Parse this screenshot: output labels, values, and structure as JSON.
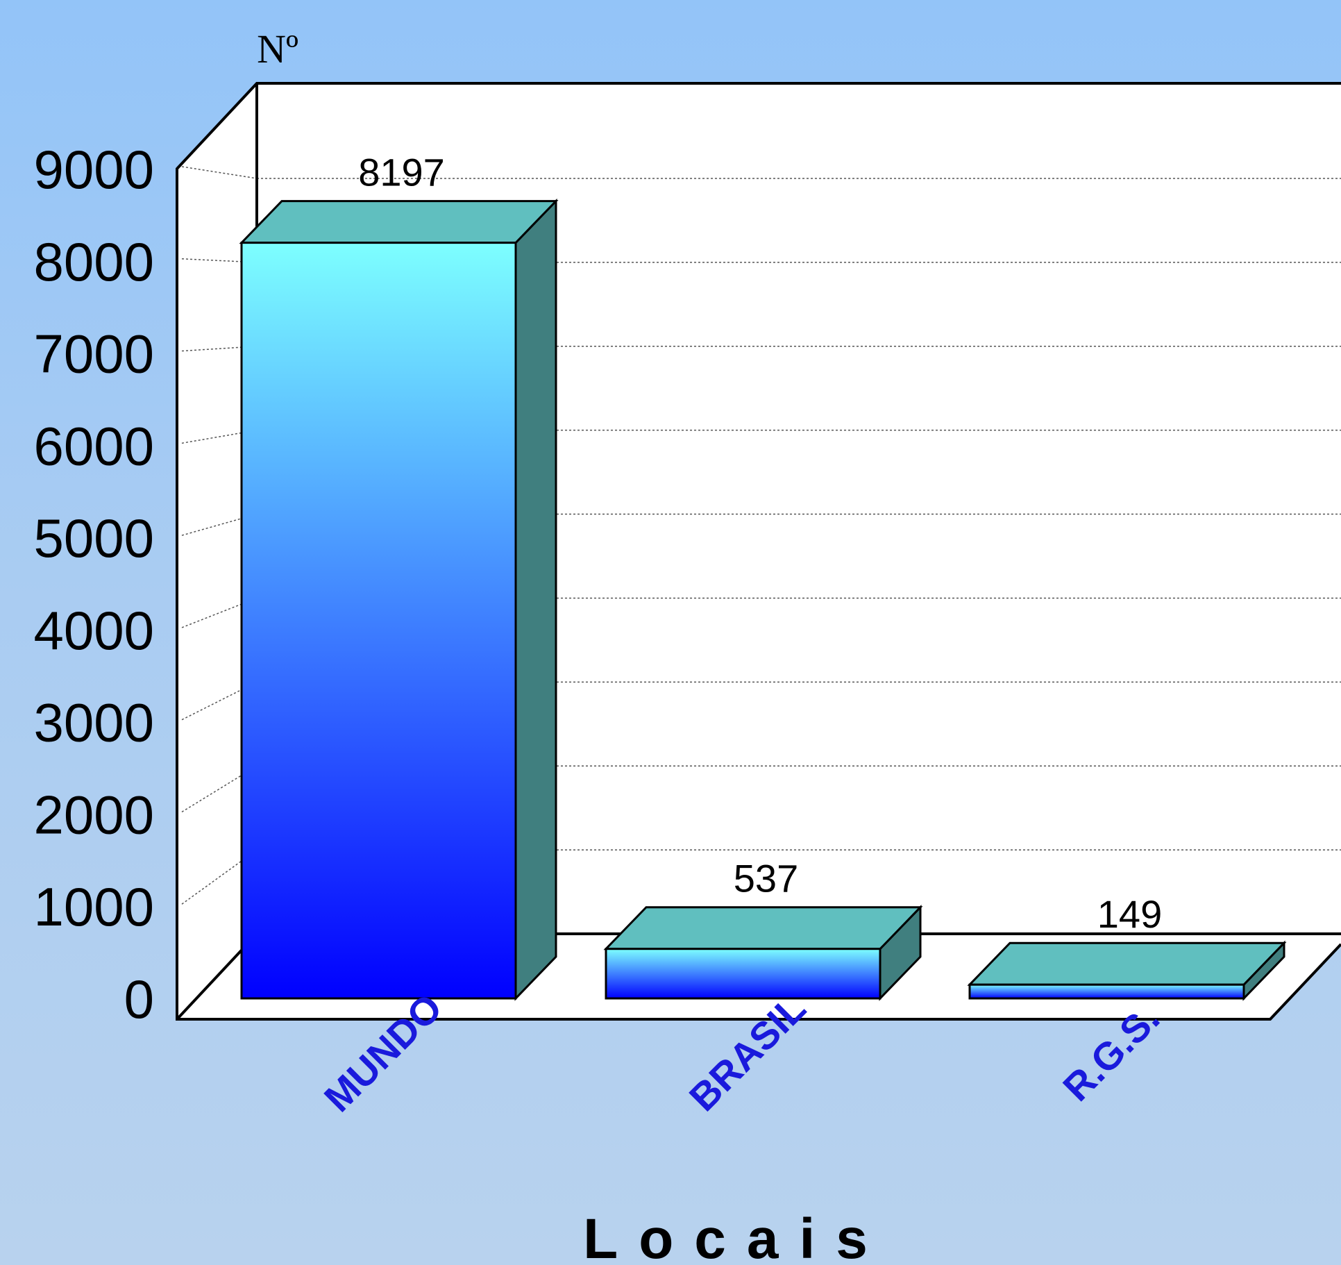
{
  "chart_data": {
    "type": "bar",
    "title": "",
    "ylabel": "Nº",
    "xlabel": "Locais",
    "categories": [
      "MUNDO",
      "BRASIL",
      "R.G.S."
    ],
    "values": [
      8197,
      537,
      149
    ],
    "ylim": [
      0,
      9000
    ],
    "yticks": [
      0,
      1000,
      2000,
      3000,
      4000,
      5000,
      6000,
      7000,
      8000,
      9000
    ],
    "grid": true,
    "three_d": true,
    "colors": {
      "bar_top": "#7dffff",
      "bar_bottom": "#0000ff",
      "bar_roof": "#60bfbf",
      "bar_side": "#407f7f",
      "category_label": "#1a1adc",
      "plot_background": "#ffffff"
    }
  }
}
